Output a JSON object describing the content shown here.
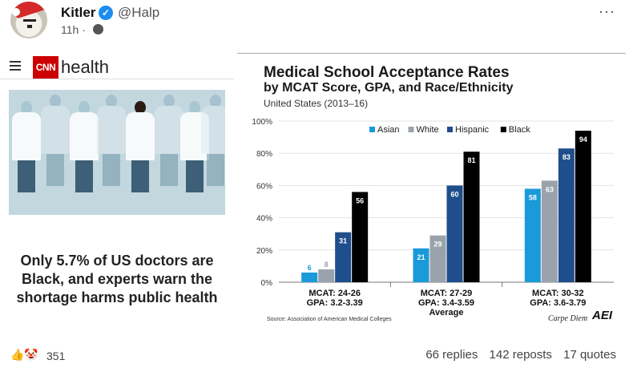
{
  "post": {
    "display_name": "Kitler",
    "handle": "@Halp",
    "time": "11h ·",
    "more_label": "···"
  },
  "article": {
    "brand": "CNN",
    "section": "health",
    "headline": "Only 5.7% of US doctors are Black, and experts warn the shortage harms public health"
  },
  "chart_header": {
    "title": "Medical School Acceptance Rates",
    "subtitle": "by MCAT Score, GPA, and Race/Ethnicity",
    "region": "United States (2013–16)",
    "source": "Source: Association of American Medical Colleges",
    "credit": "Carpe Diem",
    "brand": "AEI"
  },
  "chart_data": {
    "type": "bar",
    "categories": [
      "MCAT: 24-26\nGPA: 3.2-3.39",
      "MCAT: 27-29\nGPA: 3.4-3.59\nAverage",
      "MCAT: 30-32\nGPA: 3.6-3.79"
    ],
    "series": [
      {
        "name": "Asian",
        "color": "#1a9ad9",
        "values": [
          6,
          21,
          58
        ]
      },
      {
        "name": "White",
        "color": "#9aa3ab",
        "values": [
          8,
          29,
          63
        ]
      },
      {
        "name": "Hispanic",
        "color": "#1f4e8c",
        "values": [
          31,
          60,
          83
        ]
      },
      {
        "name": "Black",
        "color": "#000000",
        "values": [
          56,
          81,
          94
        ]
      }
    ],
    "ylim": [
      0,
      100
    ],
    "yticks": [
      "0%",
      "20%",
      "40%",
      "60%",
      "80%",
      "100%"
    ],
    "legend": "top"
  },
  "footer": {
    "reactions_icons": "👍🤡",
    "reactions_count": "351",
    "replies": "66 replies",
    "reposts": "142 reposts",
    "quotes": "17 quotes"
  }
}
